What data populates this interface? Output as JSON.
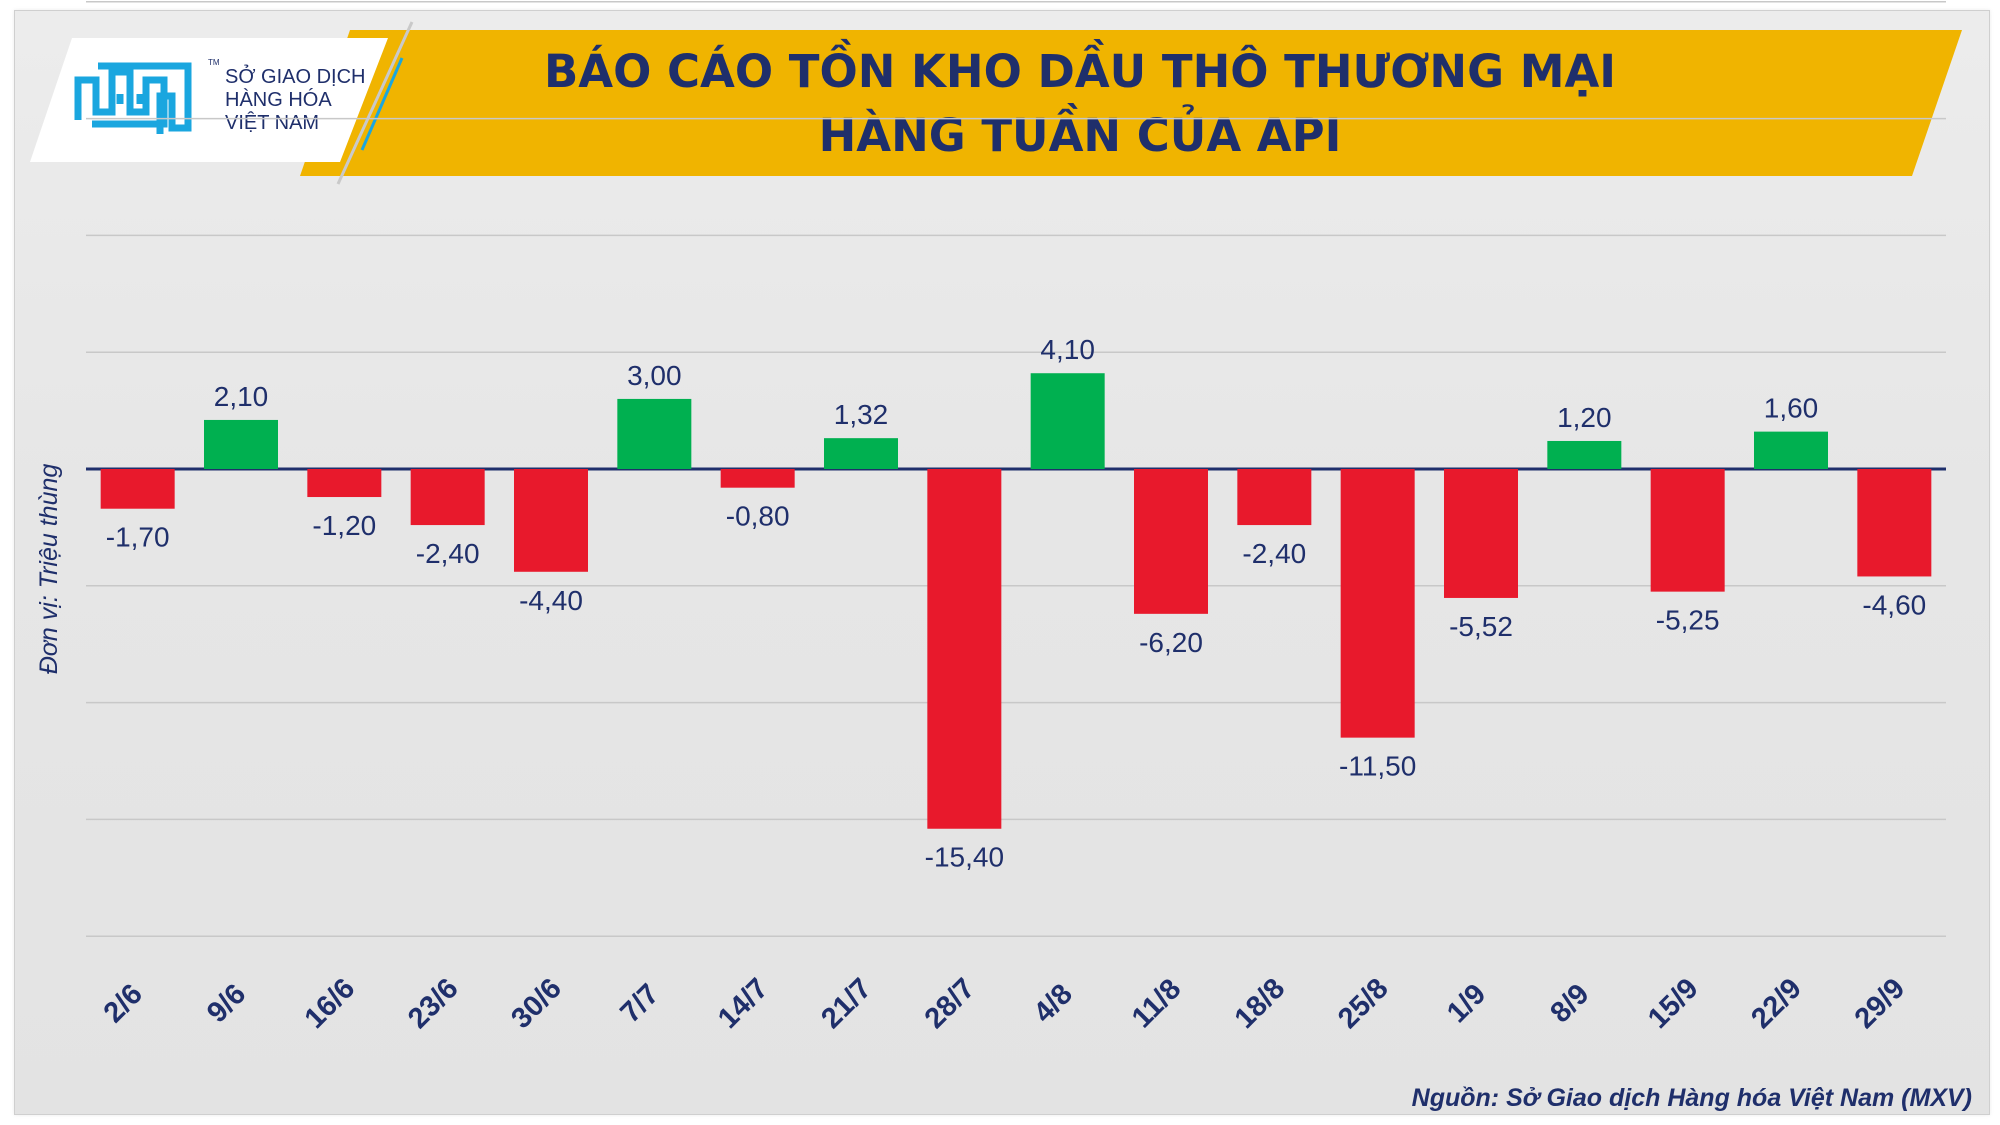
{
  "header": {
    "title_line1": "BÁO CÁO TỒN KHO DẦU THÔ THƯƠNG MẠI",
    "title_line2": "HÀNG TUẦN CỦA API"
  },
  "logo": {
    "line1": "SỞ GIAO DỊCH",
    "line2": "HÀNG HÓA",
    "line3": "VIỆT NAM",
    "tm": "TM"
  },
  "colors": {
    "banner": "#f0b400",
    "title_text": "#1f2f6b",
    "positive": "#00b050",
    "negative": "#e8192c",
    "axis": "#1f2f6b",
    "gridline": "#c8c8c8",
    "logo_blue": "#1aa6df"
  },
  "chart_data": {
    "type": "bar",
    "title": "BÁO CÁO TỒN KHO DẦU THÔ THƯƠNG MẠI HÀNG TUẦN CỦA API",
    "ylabel": "Đơn vị: Triệu thùng",
    "xlabel": "",
    "ylim": [
      -20,
      20
    ],
    "grid": true,
    "categories": [
      "2/6",
      "9/6",
      "16/6",
      "23/6",
      "30/6",
      "7/7",
      "14/7",
      "21/7",
      "28/7",
      "4/8",
      "11/8",
      "18/8",
      "25/8",
      "1/9",
      "8/9",
      "15/9",
      "22/9",
      "29/9"
    ],
    "values": [
      -1.7,
      2.1,
      -1.2,
      -2.4,
      -4.4,
      3.0,
      -0.8,
      1.32,
      -15.4,
      4.1,
      -6.2,
      -2.4,
      -11.5,
      -5.52,
      1.2,
      -5.25,
      1.6,
      -4.6
    ],
    "labels": [
      "-1,70",
      "2,10",
      "-1,20",
      "-2,40",
      "-4,40",
      "3,00",
      "-0,80",
      "1,32",
      "-15,40",
      "4,10",
      "-6,20",
      "-2,40",
      "-11,50",
      "-5,52",
      "1,20",
      "-5,25",
      "1,60",
      "-4,60"
    ]
  },
  "footer": {
    "source": "Nguồn: Sở Giao dịch Hàng hóa Việt Nam (MXV)"
  }
}
